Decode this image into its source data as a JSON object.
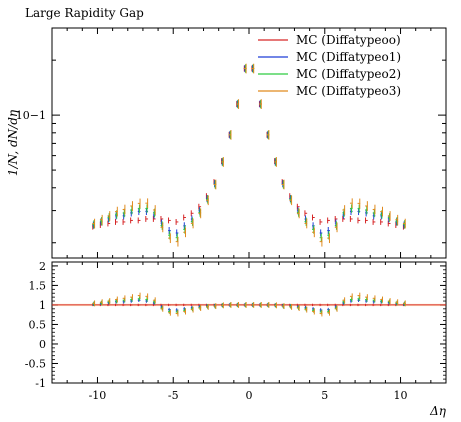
{
  "chart_data": {
    "type": "scatter",
    "title": "Large Rapidity Gap",
    "xlabel": "Δη",
    "ylabel": "1/N, dN/dη",
    "xlim": [
      -13,
      13
    ],
    "main_ylim": [
      0.0165,
      0.3
    ],
    "main_yscale": "log",
    "main_ytick_labels": [
      "10−1"
    ],
    "ratio_ylim": [
      -1,
      2.1
    ],
    "ratio_ytick_labels": [
      "2",
      "1.5",
      "1",
      "0.5",
      "0",
      "-0.5",
      "-1"
    ],
    "ratio_ytick_values": [
      2,
      1.5,
      1,
      0.5,
      0,
      -0.5,
      -1
    ],
    "xtick_labels": [
      "-10",
      "-5",
      "0",
      "5",
      "10"
    ],
    "xtick_values": [
      -10,
      -5,
      0,
      5,
      10
    ],
    "legend_position": "top-right",
    "series": [
      {
        "name": "MC (Diffatypeoo)",
        "color": "#d62728"
      },
      {
        "name": "MC (Diffatypeo1)",
        "color": "#1f3fd6"
      },
      {
        "name": "MC (Diffatypeo2)",
        "color": "#2ecc40"
      },
      {
        "name": "MC (Diffatypeo3)",
        "color": "#e08a1e"
      }
    ],
    "x_points": [
      -10.25,
      -9.75,
      -9.25,
      -8.75,
      -8.25,
      -7.75,
      -7.25,
      -6.75,
      -6.25,
      -5.75,
      -5.25,
      -4.75,
      -4.25,
      -3.75,
      -3.25,
      -2.75,
      -2.25,
      -1.75,
      -1.25,
      -0.75,
      -0.25,
      0.25,
      0.75,
      1.25,
      1.75,
      2.25,
      2.75,
      3.25,
      3.75,
      4.25,
      4.75,
      5.25,
      5.75,
      6.25,
      6.75,
      7.25,
      7.75,
      8.25,
      8.75,
      9.25,
      9.75,
      10.25
    ],
    "reference_values": [
      0.0245,
      0.025,
      0.0255,
      0.026,
      0.026,
      0.0265,
      0.0265,
      0.027,
      0.027,
      0.027,
      0.0265,
      0.026,
      0.0275,
      0.029,
      0.0315,
      0.036,
      0.043,
      0.056,
      0.078,
      0.115,
      0.18,
      0.18,
      0.115,
      0.078,
      0.056,
      0.043,
      0.036,
      0.0315,
      0.029,
      0.0275,
      0.026,
      0.0265,
      0.027,
      0.027,
      0.027,
      0.0265,
      0.0265,
      0.026,
      0.026,
      0.0255,
      0.025,
      0.0245
    ],
    "ratios": [
      [
        1.0,
        1.0,
        1.0,
        1.0,
        1.0,
        1.0,
        1.0,
        1.0,
        1.0,
        1.0,
        1.0,
        1.0,
        1.0,
        1.0,
        1.0,
        1.0,
        1.0,
        1.0,
        1.0,
        1.0,
        1.0,
        1.0,
        1.0,
        1.0,
        1.0,
        1.0,
        1.0,
        1.0,
        1.0,
        1.0,
        1.0,
        1.0,
        1.0,
        1.0,
        1.0,
        1.0,
        1.0,
        1.0,
        1.0,
        1.0,
        1.0,
        1.0
      ],
      [
        1.02,
        1.04,
        1.06,
        1.08,
        1.08,
        1.1,
        1.12,
        1.1,
        1.05,
        0.95,
        0.88,
        0.87,
        0.9,
        0.93,
        0.95,
        0.97,
        0.98,
        0.99,
        1.0,
        1.0,
        1.0,
        1.0,
        1.0,
        1.0,
        0.99,
        0.98,
        0.97,
        0.95,
        0.93,
        0.9,
        0.87,
        0.88,
        0.95,
        1.05,
        1.1,
        1.12,
        1.1,
        1.08,
        1.08,
        1.06,
        1.04,
        1.02
      ],
      [
        1.03,
        1.05,
        1.08,
        1.1,
        1.12,
        1.14,
        1.16,
        1.14,
        1.08,
        0.92,
        0.83,
        0.82,
        0.86,
        0.9,
        0.93,
        0.96,
        0.97,
        0.99,
        1.0,
        1.0,
        1.0,
        1.0,
        1.0,
        1.0,
        0.99,
        0.97,
        0.96,
        0.93,
        0.9,
        0.86,
        0.82,
        0.83,
        0.92,
        1.08,
        1.14,
        1.16,
        1.14,
        1.12,
        1.1,
        1.08,
        1.05,
        1.03
      ],
      [
        1.04,
        1.07,
        1.1,
        1.14,
        1.17,
        1.2,
        1.24,
        1.22,
        1.12,
        0.9,
        0.8,
        0.78,
        0.83,
        0.88,
        0.92,
        0.95,
        0.97,
        0.99,
        1.0,
        1.0,
        1.0,
        1.0,
        1.0,
        1.0,
        0.99,
        0.97,
        0.95,
        0.92,
        0.88,
        0.83,
        0.78,
        0.8,
        0.9,
        1.12,
        1.22,
        1.24,
        1.2,
        1.17,
        1.14,
        1.1,
        1.07,
        1.04
      ]
    ],
    "overflow_marker_x": [
      -10.9,
      12.2
    ],
    "overflow_marker_value": 0.5
  }
}
